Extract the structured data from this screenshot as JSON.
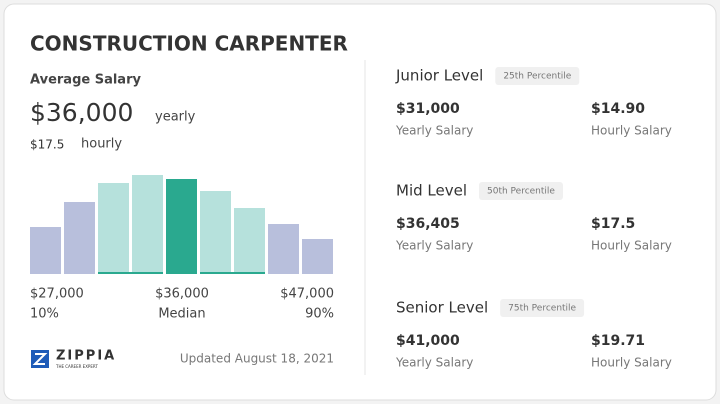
{
  "header": {
    "title": "CONSTRUCTION CARPENTER"
  },
  "average": {
    "label": "Average Salary",
    "amount": "$36,000",
    "period": "yearly",
    "hourly": "$17.5",
    "hourly_period": "hourly"
  },
  "range": {
    "low": "$27,000",
    "mid": "$36,000",
    "high": "$47,000",
    "low_label": "10%",
    "mid_label": "Median",
    "high_label": "90%"
  },
  "footer": {
    "brand": "ZIPPIA",
    "tagline": "THE CAREER EXPERT",
    "updated": "Updated August 18, 2021"
  },
  "levels": [
    {
      "name": "Junior Level",
      "percentile": "25th Percentile",
      "yearly": "$31,000",
      "yearly_label": "Yearly Salary",
      "hourly": "$14.90",
      "hourly_label": "Hourly Salary"
    },
    {
      "name": "Mid Level",
      "percentile": "50th Percentile",
      "yearly": "$36,405",
      "yearly_label": "Yearly Salary",
      "hourly": "$17.5",
      "hourly_label": "Hourly Salary"
    },
    {
      "name": "Senior Level",
      "percentile": "75th Percentile",
      "yearly": "$41,000",
      "yearly_label": "Yearly Salary",
      "hourly": "$19.71",
      "hourly_label": "Hourly Salary"
    }
  ]
}
